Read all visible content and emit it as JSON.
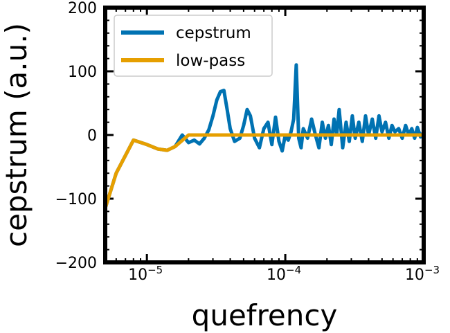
{
  "chart_data": {
    "type": "line",
    "xlabel": "quefrency",
    "ylabel": "cepstrum (a.u.)",
    "xscale": "log",
    "xlim": [
      5e-06,
      0.001
    ],
    "ylim": [
      -200,
      200
    ],
    "grid": false,
    "legend_placement": "top-left",
    "xticks": [
      {
        "value": 1e-05,
        "base": "10",
        "exp": "−5"
      },
      {
        "value": 0.0001,
        "base": "10",
        "exp": "−4"
      },
      {
        "value": 0.001,
        "base": "10",
        "exp": "−3"
      }
    ],
    "yticks": [
      {
        "value": 200,
        "label": "200"
      },
      {
        "value": 100,
        "label": "100"
      },
      {
        "value": 0,
        "label": "0"
      },
      {
        "value": -100,
        "label": "−100"
      },
      {
        "value": -200,
        "label": "−200"
      }
    ],
    "series": [
      {
        "name": "cepstrum",
        "color": "#0072b2",
        "x": [
          5e-06,
          6e-06,
          8e-06,
          1e-05,
          1.2e-05,
          1.4e-05,
          1.6e-05,
          1.8e-05,
          2e-05,
          2.2e-05,
          2.4e-05,
          2.6e-05,
          2.8e-05,
          3e-05,
          3.2e-05,
          3.4e-05,
          3.6e-05,
          3.8e-05,
          4e-05,
          4.3e-05,
          4.7e-05,
          5e-05,
          5.3e-05,
          5.6e-05,
          6e-05,
          6.5e-05,
          7e-05,
          7.5e-05,
          8e-05,
          8.5e-05,
          9e-05,
          9.5e-05,
          0.0001,
          0.000105,
          0.00011,
          0.000115,
          0.00012,
          0.000125,
          0.00013,
          0.000135,
          0.000145,
          0.000155,
          0.000165,
          0.000175,
          0.000185,
          0.000195,
          0.000205,
          0.000215,
          0.000225,
          0.000235,
          0.000245,
          0.00026,
          0.000275,
          0.00029,
          0.000305,
          0.00032,
          0.00034,
          0.00036,
          0.00038,
          0.0004,
          0.000425,
          0.00045,
          0.000475,
          0.0005,
          0.00053,
          0.00056,
          0.00059,
          0.00062,
          0.00066,
          0.0007,
          0.00074,
          0.00078,
          0.00082,
          0.00086,
          0.0009,
          0.00095,
          0.001
        ],
        "y": [
          -115,
          -60,
          -8,
          -15,
          -22,
          -24,
          -18,
          0,
          -12,
          -8,
          -14,
          -5,
          8,
          30,
          55,
          68,
          70,
          40,
          10,
          -10,
          -5,
          15,
          40,
          30,
          -5,
          -20,
          10,
          20,
          -15,
          28,
          -10,
          -25,
          0,
          -8,
          5,
          25,
          110,
          -5,
          -20,
          10,
          -5,
          25,
          0,
          -20,
          20,
          -5,
          15,
          -15,
          25,
          0,
          40,
          -20,
          20,
          -10,
          30,
          -5,
          20,
          -10,
          30,
          0,
          25,
          -5,
          30,
          5,
          20,
          -5,
          15,
          5,
          10,
          -5,
          15,
          0,
          10,
          -5,
          12,
          -3,
          5
        ]
      },
      {
        "name": "low-pass",
        "color": "#e69f00",
        "x": [
          5e-06,
          6e-06,
          8e-06,
          1e-05,
          1.2e-05,
          1.4e-05,
          1.6e-05,
          2e-05,
          0.001
        ],
        "y": [
          -115,
          -60,
          -8,
          -15,
          -22,
          -24,
          -18,
          0,
          0
        ]
      }
    ]
  }
}
